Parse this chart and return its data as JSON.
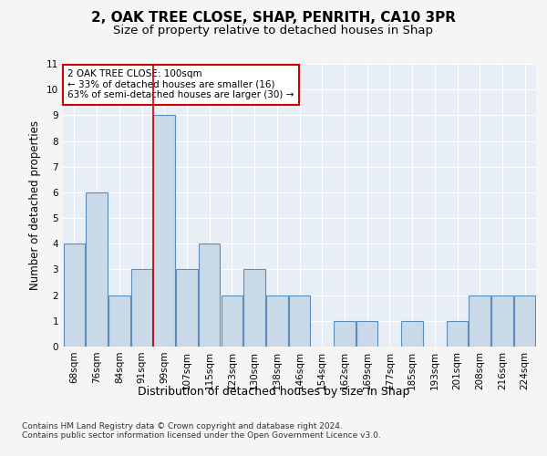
{
  "title1": "2, OAK TREE CLOSE, SHAP, PENRITH, CA10 3PR",
  "title2": "Size of property relative to detached houses in Shap",
  "xlabel": "Distribution of detached houses by size in Shap",
  "ylabel": "Number of detached properties",
  "categories": [
    "68sqm",
    "76sqm",
    "84sqm",
    "91sqm",
    "99sqm",
    "107sqm",
    "115sqm",
    "123sqm",
    "130sqm",
    "138sqm",
    "146sqm",
    "154sqm",
    "162sqm",
    "169sqm",
    "177sqm",
    "185sqm",
    "193sqm",
    "201sqm",
    "208sqm",
    "216sqm",
    "224sqm"
  ],
  "values": [
    4,
    6,
    2,
    3,
    9,
    3,
    4,
    2,
    3,
    2,
    2,
    0,
    1,
    1,
    0,
    1,
    0,
    1,
    2,
    2,
    2
  ],
  "bar_color": "#c9d9e8",
  "bar_edge_color": "#5b8db8",
  "vline_color": "#cc0000",
  "vline_x_index": 4,
  "annotation_box_text": "2 OAK TREE CLOSE: 100sqm\n← 33% of detached houses are smaller (16)\n63% of semi-detached houses are larger (30) →",
  "annotation_box_color": "#ffffff",
  "annotation_box_edge_color": "#cc0000",
  "footer": "Contains HM Land Registry data © Crown copyright and database right 2024.\nContains public sector information licensed under the Open Government Licence v3.0.",
  "ylim": [
    0,
    11
  ],
  "yticks": [
    0,
    1,
    2,
    3,
    4,
    5,
    6,
    7,
    8,
    9,
    10,
    11
  ],
  "plot_bg_color": "#e8eef5",
  "fig_bg_color": "#f5f5f5",
  "grid_color": "#ffffff",
  "title1_fontsize": 11,
  "title2_fontsize": 9.5,
  "xlabel_fontsize": 9,
  "ylabel_fontsize": 8.5,
  "tick_fontsize": 7.5,
  "annot_fontsize": 7.5,
  "footer_fontsize": 6.5
}
